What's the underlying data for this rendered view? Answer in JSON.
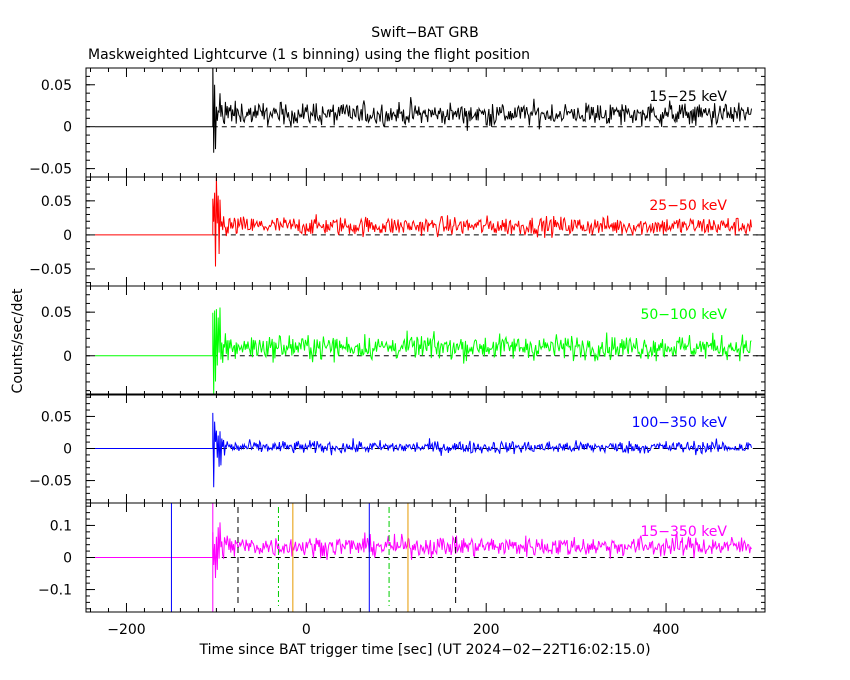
{
  "chart_data": {
    "type": "line",
    "title": "Swift−BAT GRB",
    "subtitle": "Maskweighted Lightcurve (1 s binning) using the flight position",
    "xlabel": "Time since BAT trigger time [sec] (UT 2024−02−22T16:02:15.0)",
    "ylabel": "Counts/sec/det",
    "xlim": [
      -245,
      510
    ],
    "x_ticks": [
      -200,
      0,
      200,
      400
    ],
    "x_tick_labels": [
      "−200",
      "0",
      "200",
      "400"
    ],
    "signal": {
      "start": -104,
      "end": 495
    },
    "panels": [
      {
        "band": "15−25 keV",
        "color": "#000000",
        "ylim": [
          -0.06,
          0.07
        ],
        "y_ticks": [
          0.05,
          0,
          -0.05
        ],
        "y_tick_labels": [
          "0.05",
          "0",
          "−0.05"
        ],
        "level": 0.015,
        "noise": 0.007,
        "spike": 0.05
      },
      {
        "band": "25−50 keV",
        "color": "#ff0000",
        "ylim": [
          -0.075,
          0.085
        ],
        "y_ticks": [
          0.05,
          0,
          -0.05
        ],
        "y_tick_labels": [
          "0.05",
          "0",
          "−0.05"
        ],
        "level": 0.013,
        "noise": 0.007,
        "spike": 0.06
      },
      {
        "band": "50−100 keV",
        "color": "#00ff00",
        "ylim": [
          -0.045,
          0.08
        ],
        "y_ticks": [
          0.05,
          0
        ],
        "y_tick_labels": [
          "0.05",
          "0"
        ],
        "level": 0.01,
        "noise": 0.007,
        "spike": 0.05
      },
      {
        "band": "100−350 keV",
        "color": "#0000ff",
        "ylim": [
          -0.085,
          0.085
        ],
        "y_ticks": [
          0.05,
          0,
          -0.05
        ],
        "y_tick_labels": [
          "0.05",
          "0",
          "−0.05"
        ],
        "level": 0.002,
        "noise": 0.005,
        "spike": 0.045
      },
      {
        "band": "15−350 keV",
        "color": "#ff00ff",
        "ylim": [
          -0.17,
          0.17
        ],
        "y_ticks": [
          0.1,
          0,
          -0.1
        ],
        "y_tick_labels": [
          "0.1",
          "0",
          "−0.1"
        ],
        "level": 0.035,
        "noise": 0.016,
        "spike": 0.1
      }
    ],
    "markers": [
      {
        "x": -150,
        "color": "#0000ff",
        "style": "solid"
      },
      {
        "x": -104,
        "color": "#ff00ff",
        "style": "solid"
      },
      {
        "x": -76,
        "color": "#000000",
        "style": "dashed"
      },
      {
        "x": -31,
        "color": "#00cc00",
        "style": "dashdot"
      },
      {
        "x": -15,
        "color": "#e69a00",
        "style": "solid"
      },
      {
        "x": 70,
        "color": "#0000ff",
        "style": "solid"
      },
      {
        "x": 92,
        "color": "#00cc00",
        "style": "dashdot"
      },
      {
        "x": 113,
        "color": "#e69a00",
        "style": "solid"
      },
      {
        "x": 166,
        "color": "#000000",
        "style": "dashed"
      }
    ]
  }
}
